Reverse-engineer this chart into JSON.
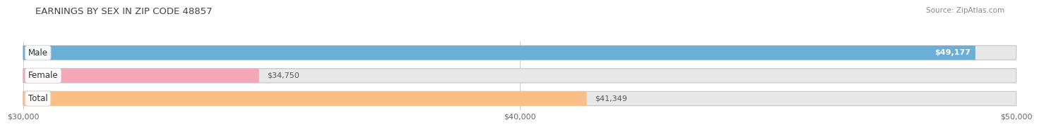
{
  "title": "EARNINGS BY SEX IN ZIP CODE 48857",
  "source": "Source: ZipAtlas.com",
  "categories": [
    "Male",
    "Female",
    "Total"
  ],
  "values": [
    49177,
    34750,
    41349
  ],
  "bar_colors": [
    "#6BAED6",
    "#F4A7B9",
    "#FDBE85"
  ],
  "bar_bg_color": "#E8E8E8",
  "value_labels": [
    "$49,177",
    "$34,750",
    "$41,349"
  ],
  "xmin": 30000,
  "xmax": 50000,
  "xticks": [
    30000,
    40000,
    50000
  ],
  "xtick_labels": [
    "$30,000",
    "$40,000",
    "$50,000"
  ],
  "fig_width": 14.06,
  "fig_height": 1.96,
  "background_color": "#FFFFFF",
  "title_fontsize": 9.5,
  "tick_fontsize": 8,
  "value_fontsize": 8,
  "label_fontsize": 8.5,
  "source_fontsize": 7.5
}
